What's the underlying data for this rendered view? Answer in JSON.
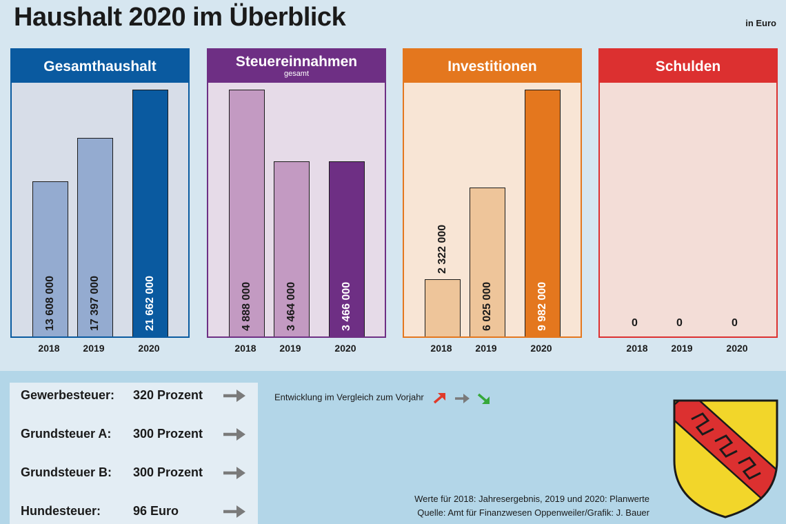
{
  "header": {
    "title": "Haushalt 2020 im Überblick",
    "unit": "in Euro"
  },
  "chart_data": [
    {
      "type": "bar",
      "title": "Gesamthaushalt",
      "categories": [
        "2018",
        "2019",
        "2020"
      ],
      "values": [
        13608000,
        17397000,
        21662000
      ],
      "value_labels": [
        "13 608 000",
        "17 397 000",
        "21 662 000"
      ]
    },
    {
      "type": "bar",
      "title": "Steuereinnahmen",
      "subtitle": "gesamt",
      "categories": [
        "2018",
        "2019",
        "2020"
      ],
      "values": [
        4888000,
        3464000,
        3466000
      ],
      "value_labels": [
        "4 888 000",
        "3 464 000",
        "3 466 000"
      ]
    },
    {
      "type": "bar",
      "title": "Investitionen",
      "categories": [
        "2018",
        "2019",
        "2020"
      ],
      "values": [
        2322000,
        6025000,
        9982000
      ],
      "value_labels": [
        "2 322 000",
        "6 025 000",
        "9 982 000"
      ]
    },
    {
      "type": "bar",
      "title": "Schulden",
      "categories": [
        "2018",
        "2019",
        "2020"
      ],
      "values": [
        0,
        0,
        0
      ],
      "value_labels": [
        "0",
        "0",
        "0"
      ]
    }
  ],
  "panel_colors": [
    {
      "header": "#0a5aa0",
      "border": "#0a5aa0",
      "bg": "#d7dde8",
      "bars": [
        "#94abd0",
        "#94abd0",
        "#0a5aa0"
      ]
    },
    {
      "header": "#6e2f84",
      "border": "#6e2f84",
      "bg": "#e6dbe8",
      "bars": [
        "#c39ac2",
        "#c39ac2",
        "#6e2f84"
      ]
    },
    {
      "header": "#e4771e",
      "border": "#e4771e",
      "bg": "#f8e5d5",
      "bars": [
        "#eec59a",
        "#eec59a",
        "#e4771e"
      ]
    },
    {
      "header": "#dc3030",
      "border": "#dc3030",
      "bg": "#f3ddd7",
      "bars": [
        "#e8a8a0",
        "#e8a8a0",
        "#dc3030"
      ]
    }
  ],
  "taxes": [
    {
      "label": "Gewerbesteuer:",
      "value": "320 Prozent",
      "trend": "gleich"
    },
    {
      "label": "Grundsteuer A:",
      "value": "300 Prozent",
      "trend": "gleich"
    },
    {
      "label": "Grundsteuer B:",
      "value": "300 Prozent",
      "trend": "gleich"
    },
    {
      "label": "Hundesteuer:",
      "value": "96 Euro",
      "trend": "gleich"
    }
  ],
  "legend": {
    "text": "Entwicklung im Vergleich zum Vorjahr",
    "icons": [
      "arrow-up-icon",
      "arrow-right-icon",
      "arrow-down-icon"
    ],
    "colors": [
      "#e03a2a",
      "#7a7a7a",
      "#36a83a"
    ]
  },
  "notes": {
    "line1": "Werte für 2018: Jahresergebnis, 2019 und 2020: Planwerte",
    "line2": "Quelle: Amt für Finanzwesen Oppenweiler/Grafik: J. Bauer"
  },
  "crest": {
    "icon": "coat-of-arms-icon",
    "colors": {
      "field": "#f2d62a",
      "bend": "#dc3030",
      "outline": "#1a1a1a"
    }
  }
}
